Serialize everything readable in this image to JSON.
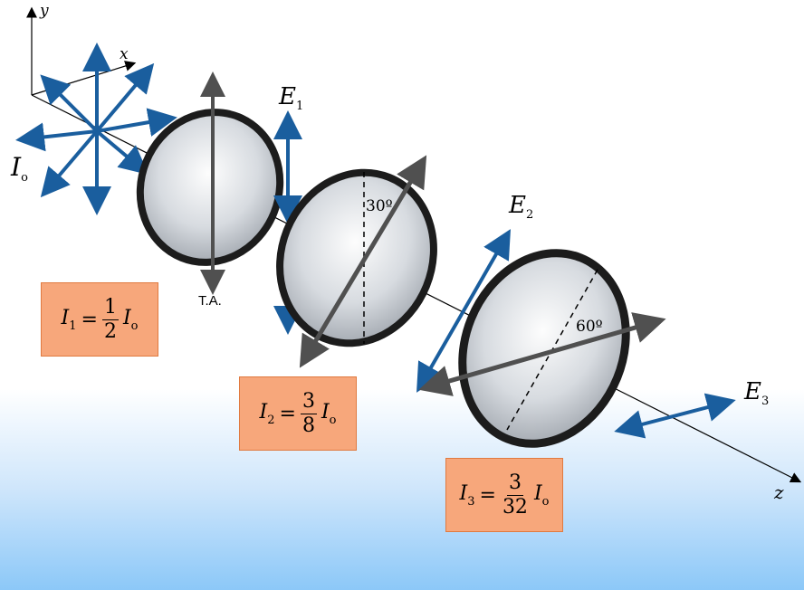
{
  "diagram": {
    "axes": {
      "y": "y",
      "x": "x",
      "z": "z"
    },
    "source_intensity": {
      "symbol": "I",
      "subscript": "o"
    },
    "transmission_axis_label": "T.A.",
    "fields": [
      {
        "symbol": "E",
        "subscript": "1"
      },
      {
        "symbol": "E",
        "subscript": "2"
      },
      {
        "symbol": "E",
        "subscript": "3"
      }
    ],
    "polarizer_angles": [
      "30º",
      "60º"
    ],
    "intensities": [
      {
        "symbol": "I",
        "subscript": "1",
        "equals": "=",
        "numerator": "1",
        "denominator": "2",
        "factor_symbol": "I",
        "factor_subscript": "o"
      },
      {
        "symbol": "I",
        "subscript": "2",
        "equals": "=",
        "numerator": "3",
        "denominator": "8",
        "factor_symbol": "I",
        "factor_subscript": "o"
      },
      {
        "symbol": "I",
        "subscript": "3",
        "equals": "=",
        "numerator": "3",
        "denominator": "32",
        "factor_symbol": "I",
        "factor_subscript": "o"
      }
    ],
    "colors": {
      "arrow_blue": "#1a5e9e",
      "ta_gray": "#505050",
      "box_orange": "#f7a77b"
    }
  }
}
